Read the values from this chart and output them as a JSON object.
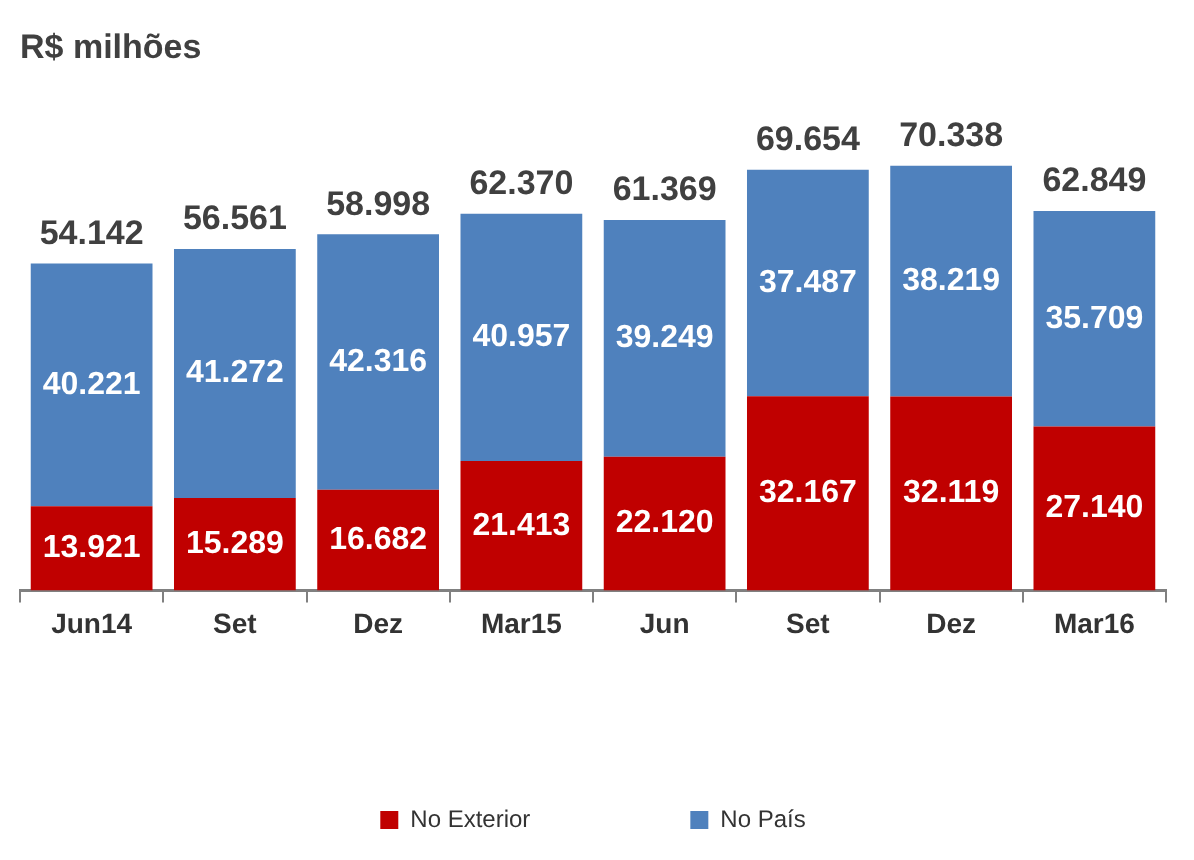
{
  "chart_data": {
    "type": "bar",
    "title": "R$ milhões",
    "categories": [
      "Jun14",
      "Set",
      "Dez",
      "Mar15",
      "Jun",
      "Set",
      "Dez",
      "Mar16"
    ],
    "stacked": true,
    "legend": "bottom",
    "series": [
      {
        "name": "No Exterior",
        "color": "#c00000",
        "values": [
          13921,
          15289,
          16682,
          21413,
          22120,
          32167,
          32119,
          27140
        ],
        "value_labels": [
          "13.921",
          "15.289",
          "16.682",
          "21.413",
          "22.120",
          "32.167",
          "32.119",
          "27.140"
        ]
      },
      {
        "name": "No País",
        "color": "#4f81bd",
        "values": [
          40221,
          41272,
          42316,
          40957,
          39249,
          37487,
          38219,
          35709
        ],
        "value_labels": [
          "40.221",
          "41.272",
          "42.316",
          "40.957",
          "39.249",
          "37.487",
          "38.219",
          "35.709"
        ]
      }
    ],
    "totals": [
      "54.142",
      "56.561",
      "58.998",
      "62.370",
      "61.369",
      "69.654",
      "70.338",
      "62.849"
    ]
  }
}
